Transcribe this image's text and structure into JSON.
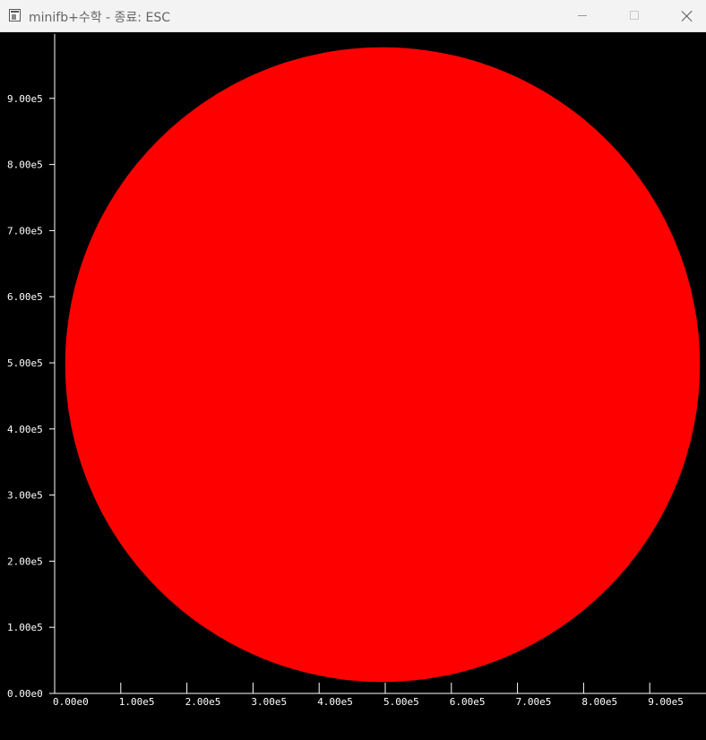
{
  "window": {
    "title": "minifb+수학 - 종료: ESC",
    "buttons": [
      "minimize",
      "maximize",
      "close"
    ]
  },
  "chart_data": {
    "type": "scatter",
    "shape": "filled-circle",
    "fill_color": "#ff0000",
    "background_color": "#000000",
    "axis_color": "#ffffff",
    "circle": {
      "center_x": 500000,
      "center_y": 500000,
      "radius": 480000
    },
    "xlim": [
      0,
      980000
    ],
    "ylim": [
      0,
      990000
    ],
    "x_ticks": [
      {
        "value": 0,
        "label": "0.00e0"
      },
      {
        "value": 100000,
        "label": "1.00e5"
      },
      {
        "value": 200000,
        "label": "2.00e5"
      },
      {
        "value": 300000,
        "label": "3.00e5"
      },
      {
        "value": 400000,
        "label": "4.00e5"
      },
      {
        "value": 500000,
        "label": "5.00e5"
      },
      {
        "value": 600000,
        "label": "6.00e5"
      },
      {
        "value": 700000,
        "label": "7.00e5"
      },
      {
        "value": 800000,
        "label": "8.00e5"
      },
      {
        "value": 900000,
        "label": "9.00e5"
      }
    ],
    "y_ticks": [
      {
        "value": 0,
        "label": "0.00e0"
      },
      {
        "value": 100000,
        "label": "1.00e5"
      },
      {
        "value": 200000,
        "label": "2.00e5"
      },
      {
        "value": 300000,
        "label": "3.00e5"
      },
      {
        "value": 400000,
        "label": "4.00e5"
      },
      {
        "value": 500000,
        "label": "5.00e5"
      },
      {
        "value": 600000,
        "label": "6.00e5"
      },
      {
        "value": 700000,
        "label": "7.00e5"
      },
      {
        "value": 800000,
        "label": "8.00e5"
      },
      {
        "value": 900000,
        "label": "9.00e5"
      }
    ]
  }
}
